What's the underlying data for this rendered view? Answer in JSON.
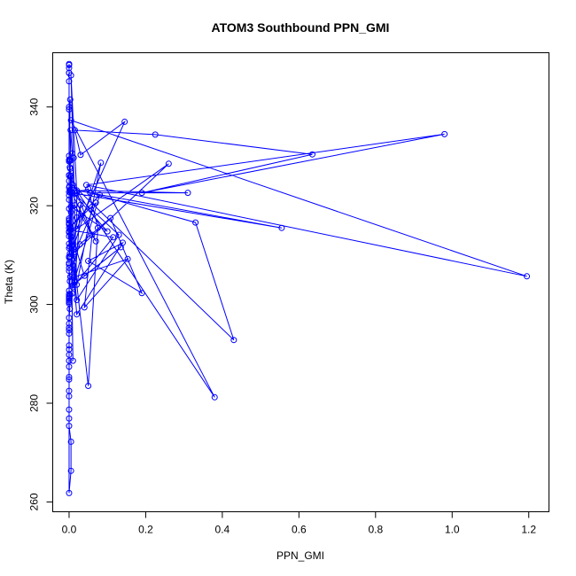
{
  "chart_data": {
    "type": "line",
    "title": "ATOM3 Southbound PPN_GMI",
    "xlabel": "PPN_GMI",
    "ylabel": "Theta (K)",
    "xlim": [
      -0.03,
      1.24
    ],
    "ylim": [
      259,
      350
    ],
    "x_ticks": [
      "0.0",
      "0.2",
      "0.4",
      "0.6",
      "0.8",
      "1.0",
      "1.2"
    ],
    "x_tick_values": [
      0,
      0.2,
      0.4,
      0.6,
      0.8,
      1.0,
      1.2
    ],
    "y_ticks": [
      "260",
      "280",
      "300",
      "320",
      "340"
    ],
    "y_tick_values": [
      260,
      280,
      300,
      320,
      340
    ],
    "grid": false,
    "legend": "none",
    "color": "#0000ff",
    "marker": "open-circle",
    "series": [
      {
        "x": [
          0.0,
          0.0,
          0.0,
          0.0,
          0.0,
          0.0,
          0.003,
          0.0,
          0.0,
          0.002,
          0.0,
          0.001,
          0.0,
          0.0,
          0.0,
          0.0,
          0.0,
          0.0,
          0.0,
          0.0,
          0.0,
          0.0,
          0.0,
          0.0,
          0.0,
          0.0,
          0.0,
          0.0,
          0.003,
          0.002,
          0.0,
          0.008,
          0.0,
          0.003,
          0.0,
          0.0,
          0.0,
          0.0,
          0.0,
          0.002,
          0.0,
          0.0,
          0.0,
          0.0,
          0.0,
          0.0,
          0.0,
          0.0,
          0.0,
          0.0,
          0.0,
          0.0,
          0.0,
          0.0,
          0.0,
          0.0,
          0.0,
          0.005,
          0.005,
          0.0,
          0.0,
          0.0,
          0.0,
          0.0,
          0.0,
          0.0,
          0.0,
          0.0,
          0.0,
          0.0,
          0.0,
          0.002,
          0.003,
          0.003,
          0.004,
          0.008,
          0.012,
          0.002,
          0.005,
          0.002,
          0.003,
          0.003,
          0.005,
          0.006,
          0.012,
          0.02,
          0.02,
          0.005,
          0.02,
          0.083,
          0.003,
          0.03,
          0.015,
          0.008,
          0.1,
          0.005,
          0.015,
          0.07,
          0.003,
          0.13,
          0.02,
          0.01,
          0.028,
          0.108,
          0.19,
          0.05,
          0.14,
          0.02,
          0.012,
          0.153,
          0.04,
          0.06,
          0.005,
          0.01,
          0.115,
          0.003,
          0.04,
          0.135,
          0.01,
          0.08,
          0.003,
          0.07,
          0.015,
          0.26,
          0.02,
          0.145,
          0.03,
          0.015,
          0.225,
          0.635,
          0.19,
          0.98,
          0.045,
          1.195,
          0.005,
          0.38,
          0.01,
          0.43,
          0.33,
          0.055,
          0.31,
          0.02,
          0.555,
          0.015,
          0.05,
          0.075,
          0.05,
          0.005,
          0.01,
          0.003,
          0.0,
          0.0,
          0.0,
          0.0
        ],
        "y": [
          348.5,
          347.9,
          346.9,
          345.2,
          340.0,
          339.5,
          341.5,
          329.3,
          329.0,
          327.8,
          326.2,
          324.0,
          323.7,
          322.1,
          319.4,
          317.0,
          316.5,
          316.3,
          316.2,
          315.5,
          314.8,
          313.8,
          312.3,
          311.4,
          309.5,
          308.4,
          307.4,
          306.8,
          305.6,
          304.7,
          302.8,
          302.2,
          302.1,
          302.0,
          301.7,
          301.4,
          301.1,
          300.8,
          300.2,
          299.1,
          297.3,
          296.1,
          295.3,
          294.8,
          294.1,
          291.7,
          290.9,
          289.8,
          288.6,
          287.4,
          285.3,
          284.8,
          282.5,
          281.4,
          278.7,
          276.9,
          275.4,
          272.2,
          266.3,
          261.8,
          300.5,
          301.2,
          308.1,
          309.7,
          314.6,
          317.0,
          317.4,
          321.2,
          322.8,
          325.0,
          326.1,
          329.4,
          325.9,
          329.1,
          335.3,
          330.6,
          329.7,
          311.7,
          313.7,
          310.3,
          322.7,
          323.1,
          318.7,
          312.8,
          309.3,
          317.6,
          322.6,
          346.4,
          304.0,
          328.7,
          309.6,
          320.2,
          304.5,
          322.7,
          314.8,
          319.8,
          320.1,
          312.8,
          323.2,
          314.1,
          300.9,
          308.0,
          312.2,
          317.5,
          302.3,
          308.8,
          312.5,
          298.0,
          305.5,
          309.2,
          299.4,
          314.1,
          326.1,
          303.5,
          313.6,
          315.1,
          305.8,
          311.6,
          303.9,
          322.2,
          315.7,
          320.6,
          310.6,
          328.5,
          315.3,
          337.0,
          330.3,
          335.3,
          334.4,
          330.4,
          322.6,
          334.5,
          324.2,
          305.7,
          337.3,
          281.2,
          324.2,
          292.8,
          316.6,
          322.6,
          322.6,
          323.1,
          315.5,
          322.5,
          323.4,
          315.5,
          283.5,
          314.5,
          288.6,
          327.5,
          329.0,
          330.1,
          346.9,
          348.7
        ]
      }
    ]
  }
}
